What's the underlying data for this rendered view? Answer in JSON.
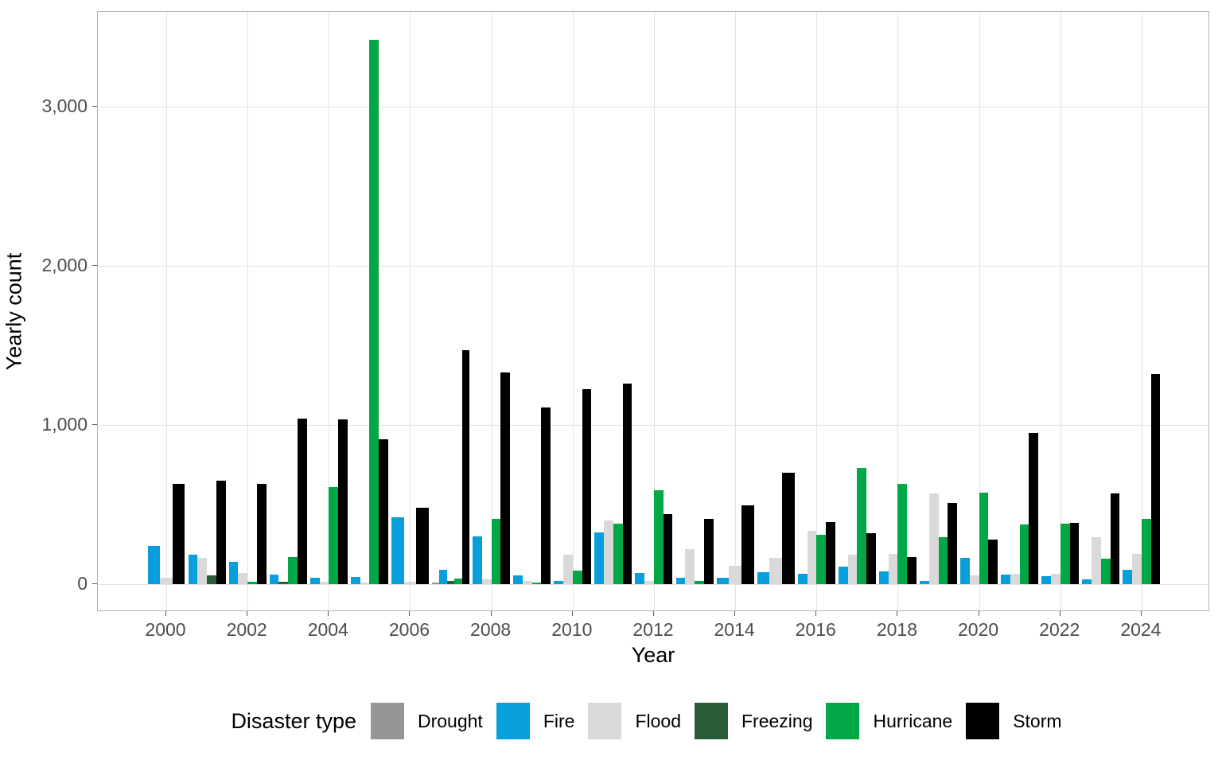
{
  "chart_data": {
    "type": "bar",
    "title": "",
    "xlabel": "Year",
    "ylabel": "Yearly count",
    "legend_title": "Disaster type",
    "legend_position": "bottom",
    "grid": true,
    "ylim": [
      0,
      3600
    ],
    "y_ticks": [
      {
        "value": 0,
        "label": "0"
      },
      {
        "value": 1000,
        "label": "1,000"
      },
      {
        "value": 2000,
        "label": "2,000"
      },
      {
        "value": 3000,
        "label": "3,000"
      }
    ],
    "x_ticks": [
      2000,
      2002,
      2004,
      2006,
      2008,
      2010,
      2012,
      2014,
      2016,
      2018,
      2020,
      2022,
      2024
    ],
    "categories": [
      2000,
      2001,
      2002,
      2003,
      2004,
      2005,
      2006,
      2007,
      2008,
      2009,
      2010,
      2011,
      2012,
      2013,
      2014,
      2015,
      2016,
      2017,
      2018,
      2019,
      2020,
      2021,
      2022,
      2023,
      2024
    ],
    "series": [
      {
        "name": "Drought",
        "color": "#969696",
        "values": [
          null,
          null,
          null,
          null,
          null,
          null,
          null,
          8,
          null,
          null,
          null,
          null,
          null,
          null,
          null,
          null,
          null,
          null,
          null,
          null,
          null,
          null,
          null,
          null,
          null
        ]
      },
      {
        "name": "Fire",
        "color": "#069edb",
        "values": [
          240,
          185,
          140,
          60,
          40,
          45,
          420,
          90,
          300,
          55,
          20,
          325,
          70,
          40,
          40,
          75,
          65,
          110,
          80,
          20,
          165,
          60,
          50,
          30,
          90
        ]
      },
      {
        "name": "Flood",
        "color": "#d9d9d9",
        "values": [
          40,
          165,
          70,
          null,
          15,
          10,
          15,
          null,
          30,
          20,
          185,
          400,
          20,
          220,
          115,
          165,
          335,
          185,
          190,
          570,
          55,
          65,
          65,
          295,
          190
        ]
      },
      {
        "name": "Freezing",
        "color": "#2a5c3a",
        "values": [
          null,
          55,
          null,
          15,
          null,
          null,
          null,
          20,
          null,
          null,
          null,
          null,
          null,
          null,
          null,
          null,
          null,
          null,
          null,
          null,
          null,
          null,
          null,
          null,
          null
        ]
      },
      {
        "name": "Hurricane",
        "color": "#00a845",
        "values": [
          null,
          null,
          15,
          170,
          610,
          3420,
          null,
          35,
          410,
          10,
          85,
          380,
          590,
          20,
          null,
          null,
          310,
          730,
          630,
          295,
          575,
          375,
          380,
          160,
          410
        ]
      },
      {
        "name": "Storm",
        "color": "#000000",
        "values": [
          630,
          650,
          630,
          1040,
          1035,
          910,
          480,
          1470,
          1330,
          1110,
          1225,
          1260,
          440,
          410,
          495,
          700,
          390,
          320,
          170,
          510,
          280,
          950,
          385,
          570,
          1320
        ]
      }
    ]
  },
  "style_colors": {
    "panel_border": "#b3b3b3",
    "gridline": "#e3e3e3",
    "tick_label": "#4d4d4d",
    "axis_title": "#000000",
    "background": "#ffffff"
  }
}
